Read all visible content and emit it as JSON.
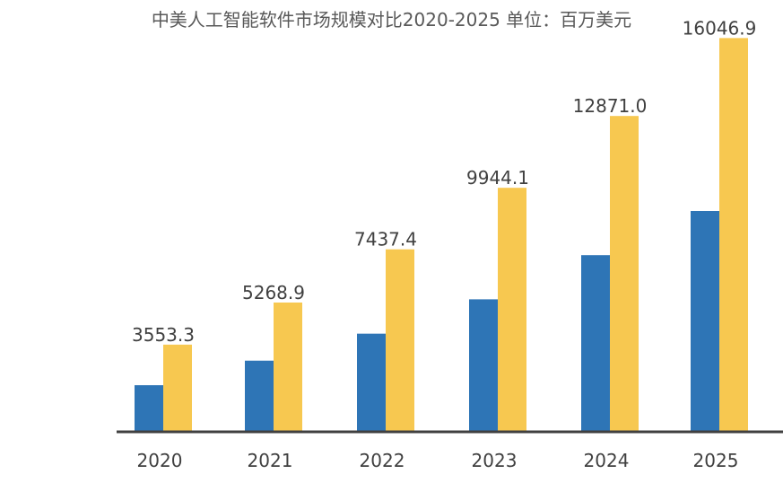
{
  "chart_data": {
    "type": "bar",
    "title": "中美人工智能软件市场规模对比2020-2025  单位：百万美元",
    "categories": [
      "2020",
      "2021",
      "2022",
      "2023",
      "2024",
      "2025"
    ],
    "series": [
      {
        "color": "#2e75b6",
        "values": [
          1900,
          2900,
          4000,
          5400,
          7200,
          9000
        ]
      },
      {
        "color": "#f7c850",
        "values": [
          3553.3,
          5268.9,
          7437.4,
          9944.1,
          12871.0,
          16046.9
        ]
      }
    ],
    "data_labels": [
      "3553.3",
      "5268.9",
      "7437.4",
      "9944.1",
      "12871.0",
      "16046.9"
    ],
    "ylim": [
      0,
      16500
    ],
    "xlabel": "",
    "ylabel": "",
    "grid": false,
    "legend": "none",
    "axis_color": "#404040"
  }
}
